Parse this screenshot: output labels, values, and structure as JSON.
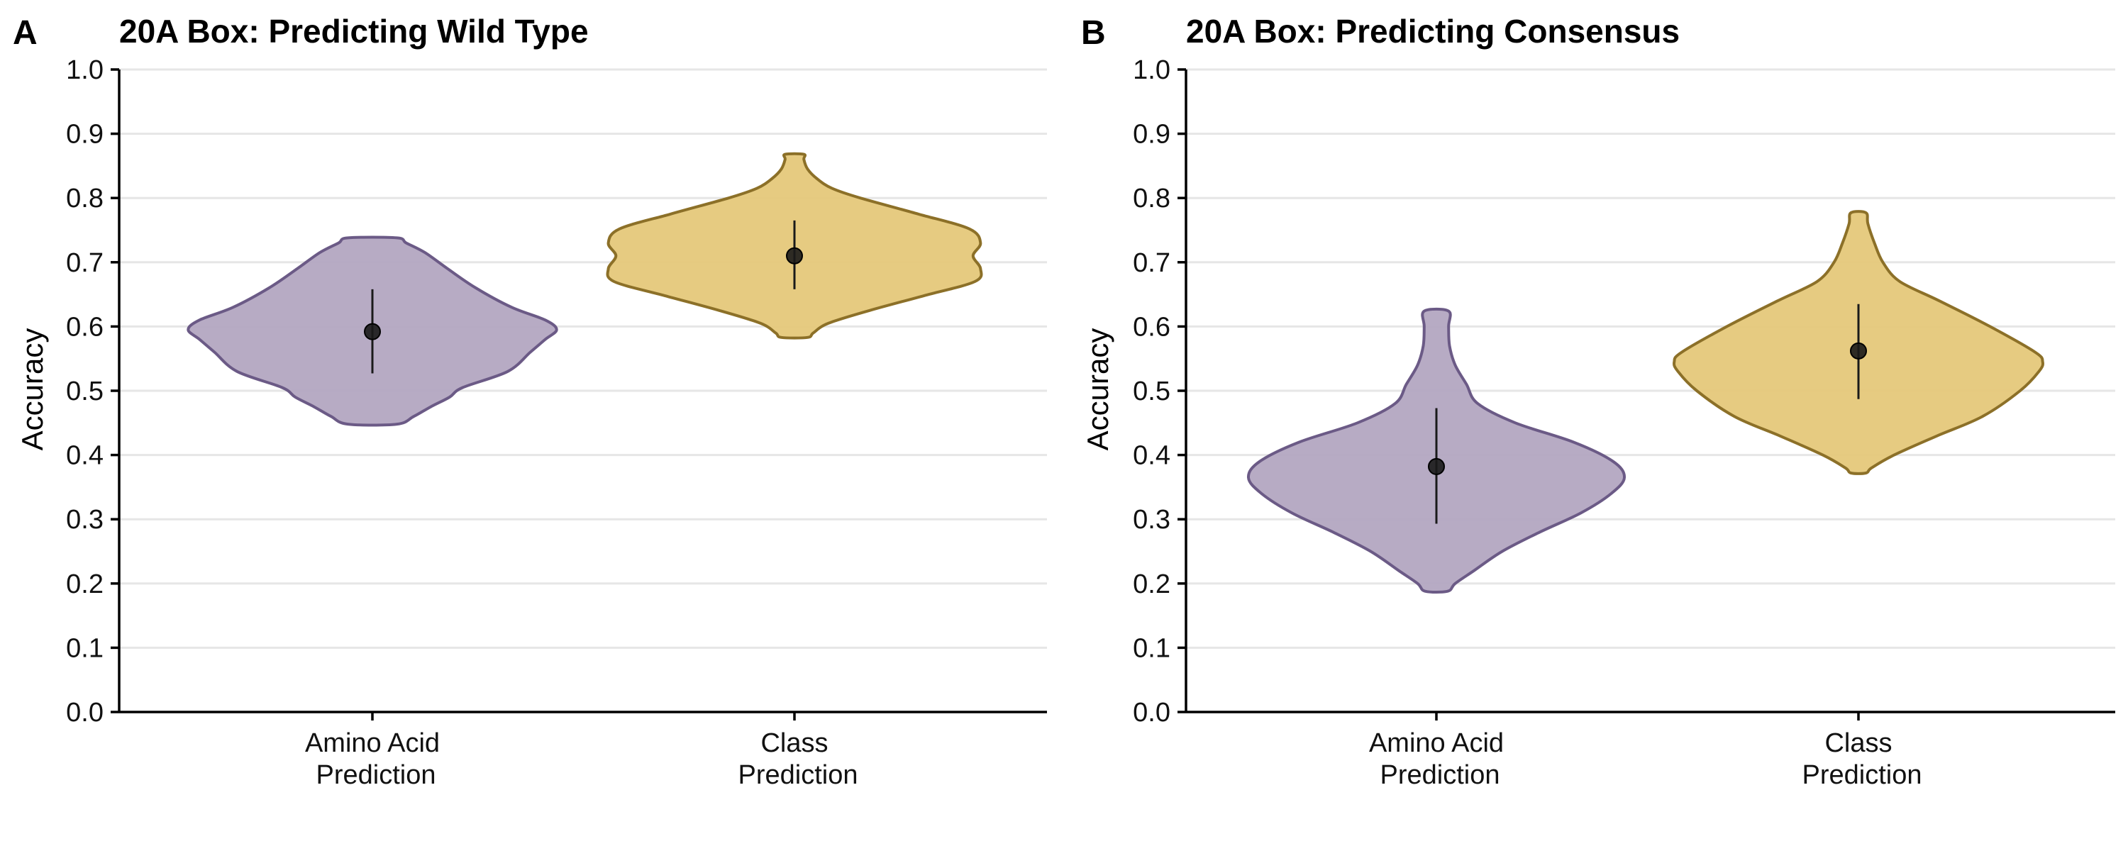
{
  "chart_data": [
    {
      "type": "violin",
      "panel_letter": "A",
      "title": "20A Box: Predicting Wild Type",
      "ylabel": "Accuracy",
      "ylim": [
        0,
        1
      ],
      "yticks": [
        "0.0",
        "0.1",
        "0.2",
        "0.3",
        "0.4",
        "0.5",
        "0.6",
        "0.7",
        "0.8",
        "0.9",
        "1.0"
      ],
      "grid": "horizontal",
      "categories": [
        {
          "line1": "Amino Acid",
          "line2": "Prediction"
        },
        {
          "line1": "Class",
          "line2": "Prediction"
        }
      ],
      "violins": [
        {
          "category": "Amino Acid Prediction",
          "fill": "#b3a7c1",
          "stroke": "#6b5a86",
          "mean": 0.592,
          "err_low": 0.527,
          "err_high": 0.658,
          "profile": [
            [
              0.448,
              0.13
            ],
            [
              0.46,
              0.22
            ],
            [
              0.475,
              0.31
            ],
            [
              0.49,
              0.41
            ],
            [
              0.505,
              0.48
            ],
            [
              0.53,
              0.72
            ],
            [
              0.56,
              0.84
            ],
            [
              0.58,
              0.92
            ],
            [
              0.595,
              0.98
            ],
            [
              0.61,
              0.92
            ],
            [
              0.63,
              0.74
            ],
            [
              0.66,
              0.55
            ],
            [
              0.69,
              0.4
            ],
            [
              0.715,
              0.28
            ],
            [
              0.73,
              0.18
            ],
            [
              0.738,
              0.13
            ]
          ]
        },
        {
          "category": "Class Prediction",
          "fill": "#e5c87a",
          "stroke": "#8c7028",
          "mean": 0.71,
          "err_low": 0.658,
          "err_high": 0.765,
          "profile": [
            [
              0.583,
              0.07
            ],
            [
              0.59,
              0.1
            ],
            [
              0.605,
              0.18
            ],
            [
              0.625,
              0.4
            ],
            [
              0.648,
              0.69
            ],
            [
              0.67,
              0.96
            ],
            [
              0.69,
              0.99
            ],
            [
              0.71,
              0.95
            ],
            [
              0.73,
              0.99
            ],
            [
              0.752,
              0.93
            ],
            [
              0.775,
              0.66
            ],
            [
              0.8,
              0.35
            ],
            [
              0.815,
              0.2
            ],
            [
              0.83,
              0.12
            ],
            [
              0.845,
              0.07
            ],
            [
              0.86,
              0.05
            ],
            [
              0.868,
              0.05
            ]
          ]
        }
      ]
    },
    {
      "type": "violin",
      "panel_letter": "B",
      "title": "20A Box: Predicting Consensus",
      "ylabel": "Accuracy",
      "ylim": [
        0,
        1
      ],
      "yticks": [
        "0.0",
        "0.1",
        "0.2",
        "0.3",
        "0.4",
        "0.5",
        "0.6",
        "0.7",
        "0.8",
        "0.9",
        "1.0"
      ],
      "grid": "horizontal",
      "categories": [
        {
          "line1": "Amino Acid",
          "line2": "Prediction"
        },
        {
          "line1": "Class",
          "line2": "Prediction"
        }
      ],
      "violins": [
        {
          "category": "Amino Acid Prediction",
          "fill": "#b3a7c1",
          "stroke": "#6b5a86",
          "mean": 0.382,
          "err_low": 0.293,
          "err_high": 0.473,
          "profile": [
            [
              0.188,
              0.06
            ],
            [
              0.2,
              0.1
            ],
            [
              0.22,
              0.2
            ],
            [
              0.25,
              0.35
            ],
            [
              0.28,
              0.55
            ],
            [
              0.31,
              0.77
            ],
            [
              0.34,
              0.93
            ],
            [
              0.365,
              1.0
            ],
            [
              0.39,
              0.94
            ],
            [
              0.42,
              0.73
            ],
            [
              0.45,
              0.42
            ],
            [
              0.48,
              0.22
            ],
            [
              0.51,
              0.16
            ],
            [
              0.54,
              0.1
            ],
            [
              0.57,
              0.07
            ],
            [
              0.6,
              0.065
            ],
            [
              0.624,
              0.065
            ]
          ]
        },
        {
          "category": "Class Prediction",
          "fill": "#e5c87a",
          "stroke": "#8c7028",
          "mean": 0.562,
          "err_low": 0.487,
          "err_high": 0.635,
          "profile": [
            [
              0.372,
              0.04
            ],
            [
              0.38,
              0.07
            ],
            [
              0.4,
              0.19
            ],
            [
              0.43,
              0.42
            ],
            [
              0.46,
              0.66
            ],
            [
              0.5,
              0.86
            ],
            [
              0.53,
              0.96
            ],
            [
              0.545,
              0.98
            ],
            [
              0.56,
              0.94
            ],
            [
              0.6,
              0.7
            ],
            [
              0.64,
              0.43
            ],
            [
              0.67,
              0.22
            ],
            [
              0.7,
              0.13
            ],
            [
              0.73,
              0.085
            ],
            [
              0.76,
              0.05
            ],
            [
              0.777,
              0.04
            ]
          ]
        }
      ]
    }
  ]
}
